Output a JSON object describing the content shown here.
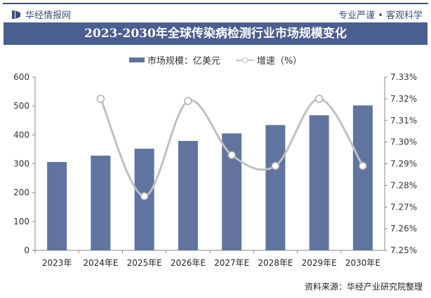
{
  "header": {
    "brand": "华经情报网",
    "slogan": "专业严谨 • 客观科学",
    "title": "2023-2030年全球传染病检测行业市场规模变化"
  },
  "footer": {
    "source": "资料来源：华经产业研究院整理"
  },
  "colors": {
    "bar": "#60749f",
    "line": "#c0c0c0",
    "title_bg": "#4a5e8f"
  },
  "chart_data": {
    "type": "bar+line",
    "categories": [
      "2023年",
      "2024年E",
      "2025年E",
      "2026年E",
      "2027年E",
      "2028年E",
      "2029年E",
      "2030年E"
    ],
    "series": [
      {
        "name": "市场规模：亿美元",
        "type": "bar",
        "axis": "left",
        "values": [
          306,
          328,
          352,
          379,
          405,
          434,
          468,
          502
        ]
      },
      {
        "name": "增速（%）",
        "type": "line",
        "axis": "right",
        "values": [
          null,
          7.32,
          7.275,
          7.319,
          7.294,
          7.289,
          7.32,
          7.289
        ]
      }
    ],
    "y_left": {
      "range": [
        0,
        600
      ],
      "ticks": [
        "0",
        "100",
        "200",
        "300",
        "400",
        "500",
        "600"
      ]
    },
    "y_right": {
      "range": [
        7.25,
        7.33
      ],
      "ticks": [
        "7.25%",
        "7.26%",
        "7.27%",
        "7.28%",
        "7.29%",
        "7.30%",
        "7.31%",
        "7.32%",
        "7.33%"
      ]
    },
    "grid": false,
    "legend": "top"
  }
}
